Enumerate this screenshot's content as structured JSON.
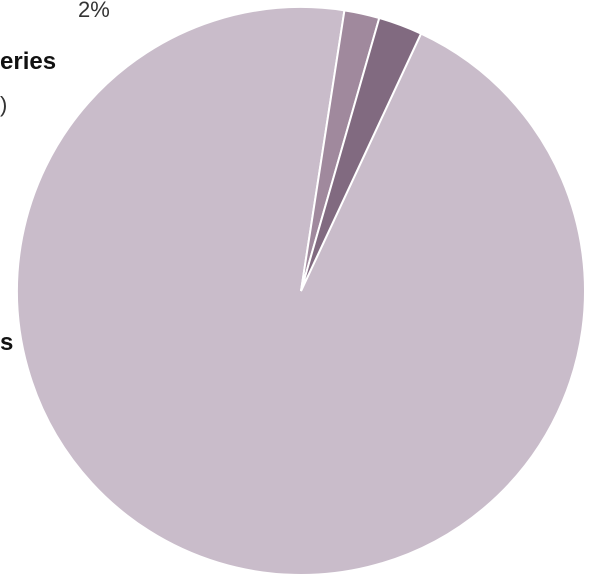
{
  "chart_data": {
    "type": "pie",
    "slices": [
      {
        "label": "",
        "value": 95.5,
        "color": "#c9bcca"
      },
      {
        "label": "",
        "value": 2.0,
        "color": "#a0899d"
      },
      {
        "label": "",
        "value": 2.5,
        "color": "#816a80"
      }
    ],
    "visible_labels": [
      {
        "text": "2%",
        "style": "light"
      },
      {
        "text": "eries",
        "style": "strong"
      },
      {
        "text": ")",
        "style": "light"
      },
      {
        "text": "s",
        "style": "strong"
      }
    ]
  }
}
